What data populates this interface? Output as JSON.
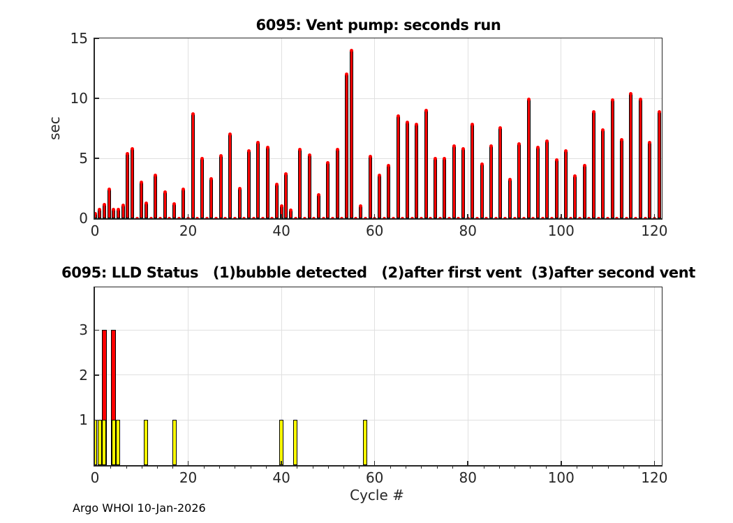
{
  "figure": {
    "footer": "Argo WHOI 10-Jan-2026",
    "background": "#ffffff",
    "axis_color": "#262626",
    "grid_color": "#e0e0e0",
    "bar_red": "#ff0000",
    "bar_yellow": "#ffff00",
    "bar_edge": "#000000"
  },
  "chart_data": [
    {
      "type": "bar",
      "title": "6095: Vent pump: seconds run",
      "xlabel": "",
      "ylabel": "sec",
      "xlim": [
        0,
        122
      ],
      "ylim": [
        0,
        15
      ],
      "yticks": [
        0,
        5,
        10,
        15
      ],
      "xticks": [
        0,
        20,
        40,
        60,
        80,
        100,
        120
      ],
      "grid": true,
      "marker_note": "red dot marker at every cycle; cycles without a bar sit at zero on the baseline",
      "marker_cycle_max": 121,
      "series": [
        {
          "name": "vent-pump-seconds",
          "color": "#ff0000",
          "points": [
            [
              0,
              0.4
            ],
            [
              1,
              0.75
            ],
            [
              2,
              1.15
            ],
            [
              3,
              2.4
            ],
            [
              4,
              0.75
            ],
            [
              5,
              0.7
            ],
            [
              6,
              1.05
            ],
            [
              7,
              5.4
            ],
            [
              8,
              5.8
            ],
            [
              10,
              3.0
            ],
            [
              11,
              1.25
            ],
            [
              13,
              3.6
            ],
            [
              15,
              2.2
            ],
            [
              17,
              1.2
            ],
            [
              19,
              2.4
            ],
            [
              21,
              8.7
            ],
            [
              23,
              4.95
            ],
            [
              25,
              3.3
            ],
            [
              27,
              5.2
            ],
            [
              29,
              7.0
            ],
            [
              31,
              2.5
            ],
            [
              33,
              5.6
            ],
            [
              35,
              6.3
            ],
            [
              37,
              5.9
            ],
            [
              39,
              2.8
            ],
            [
              40,
              1.0
            ],
            [
              41,
              3.7
            ],
            [
              42,
              0.65
            ],
            [
              44,
              5.7
            ],
            [
              46,
              5.25
            ],
            [
              48,
              1.95
            ],
            [
              50,
              4.65
            ],
            [
              52,
              5.7
            ],
            [
              54,
              12.0
            ],
            [
              55,
              14.0
            ],
            [
              57,
              1.0
            ],
            [
              59,
              5.15
            ],
            [
              61,
              3.6
            ],
            [
              63,
              4.4
            ],
            [
              65,
              8.5
            ],
            [
              67,
              8.0
            ],
            [
              69,
              7.8
            ],
            [
              71,
              9.0
            ],
            [
              73,
              4.95
            ],
            [
              75,
              5.0
            ],
            [
              77,
              6.0
            ],
            [
              79,
              5.8
            ],
            [
              81,
              7.8
            ],
            [
              83,
              4.5
            ],
            [
              85,
              6.0
            ],
            [
              87,
              7.55
            ],
            [
              89,
              3.2
            ],
            [
              91,
              6.2
            ],
            [
              93,
              9.9
            ],
            [
              95,
              5.9
            ],
            [
              97,
              6.4
            ],
            [
              99,
              4.85
            ],
            [
              101,
              5.6
            ],
            [
              103,
              3.5
            ],
            [
              105,
              4.4
            ],
            [
              107,
              8.85
            ],
            [
              109,
              7.35
            ],
            [
              111,
              9.85
            ],
            [
              113,
              6.55
            ],
            [
              115,
              10.4
            ],
            [
              117,
              9.9
            ],
            [
              119,
              6.3
            ],
            [
              121,
              8.85
            ]
          ]
        }
      ]
    },
    {
      "type": "bar",
      "title": "6095: LLD Status   (1)bubble detected   (2)after first vent  (3)after second vent",
      "xlabel": "Cycle #",
      "ylabel": "",
      "xlim": [
        0,
        122
      ],
      "ylim": [
        0,
        3.95
      ],
      "yticks": [
        1,
        2,
        3
      ],
      "xticks": [
        0,
        20,
        40,
        60,
        80,
        100,
        120
      ],
      "grid": true,
      "series": [
        {
          "name": "lld-status-3-after-second-vent",
          "color": "#ff0000",
          "points": [
            [
              2,
              3
            ],
            [
              4,
              3
            ]
          ]
        },
        {
          "name": "lld-status-1-bubble-detected",
          "color": "#ffff00",
          "points": [
            [
              0,
              1
            ],
            [
              1,
              1
            ],
            [
              2,
              1
            ],
            [
              4,
              1
            ],
            [
              5,
              1
            ],
            [
              11,
              1
            ],
            [
              17,
              1
            ],
            [
              40,
              1
            ],
            [
              43,
              1
            ],
            [
              58,
              1
            ]
          ]
        }
      ]
    }
  ]
}
